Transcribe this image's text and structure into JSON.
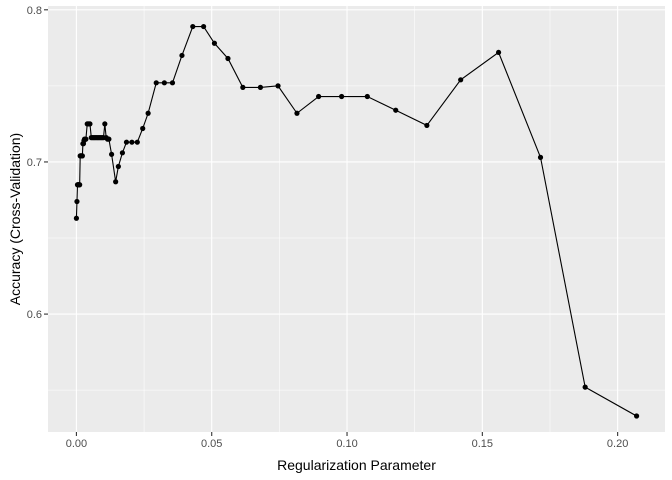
{
  "chart_data": {
    "type": "line",
    "title": "",
    "xlabel": "Regularization Parameter",
    "ylabel": "Accuracy (Cross-Validation)",
    "xlim": [
      -0.0105,
      0.2175
    ],
    "ylim": [
      0.5225,
      0.8025
    ],
    "x_ticks": [
      0.0,
      0.05,
      0.1,
      0.15,
      0.2
    ],
    "x_tick_labels": [
      "0.00",
      "0.05",
      "0.10",
      "0.15",
      "0.20"
    ],
    "y_ticks": [
      0.6,
      0.7,
      0.8
    ],
    "y_tick_labels": [
      "0.6",
      "0.7",
      "0.8"
    ],
    "grid": true,
    "legend": "none",
    "colors": {
      "panel": "#EBEBEB",
      "grid": "#FFFFFF",
      "line": "#000000",
      "point": "#000000"
    },
    "series": [
      {
        "x": [
          0.0,
          0.0002,
          0.0004,
          0.0006,
          0.0008,
          0.001,
          0.0012,
          0.0014,
          0.0016,
          0.0018,
          0.002,
          0.0022,
          0.0024,
          0.0026,
          0.0028,
          0.003,
          0.0035,
          0.004,
          0.0045,
          0.005,
          0.0055,
          0.006,
          0.0065,
          0.007,
          0.0075,
          0.008,
          0.0085,
          0.009,
          0.0095,
          0.01,
          0.0105,
          0.011,
          0.0115,
          0.012,
          0.013,
          0.0145,
          0.0155,
          0.017,
          0.0185,
          0.0205,
          0.0225,
          0.0245,
          0.0265,
          0.0295,
          0.0325,
          0.0355,
          0.039,
          0.043,
          0.047,
          0.051,
          0.056,
          0.0615,
          0.068,
          0.0745,
          0.0815,
          0.0895,
          0.098,
          0.1075,
          0.118,
          0.1295,
          0.142,
          0.156,
          0.1715,
          0.188,
          0.207
        ],
        "y": [
          0.663,
          0.674,
          0.685,
          0.685,
          0.685,
          0.685,
          0.685,
          0.704,
          0.704,
          0.704,
          0.704,
          0.704,
          0.712,
          0.712,
          0.714,
          0.715,
          0.715,
          0.725,
          0.725,
          0.725,
          0.716,
          0.716,
          0.716,
          0.716,
          0.716,
          0.716,
          0.716,
          0.716,
          0.716,
          0.716,
          0.725,
          0.716,
          0.715,
          0.715,
          0.705,
          0.687,
          0.697,
          0.706,
          0.713,
          0.713,
          0.713,
          0.722,
          0.732,
          0.752,
          0.752,
          0.752,
          0.77,
          0.789,
          0.789,
          0.778,
          0.768,
          0.749,
          0.749,
          0.75,
          0.732,
          0.743,
          0.743,
          0.743,
          0.734,
          0.724,
          0.754,
          0.772,
          0.703,
          0.552,
          0.533
        ]
      }
    ]
  }
}
